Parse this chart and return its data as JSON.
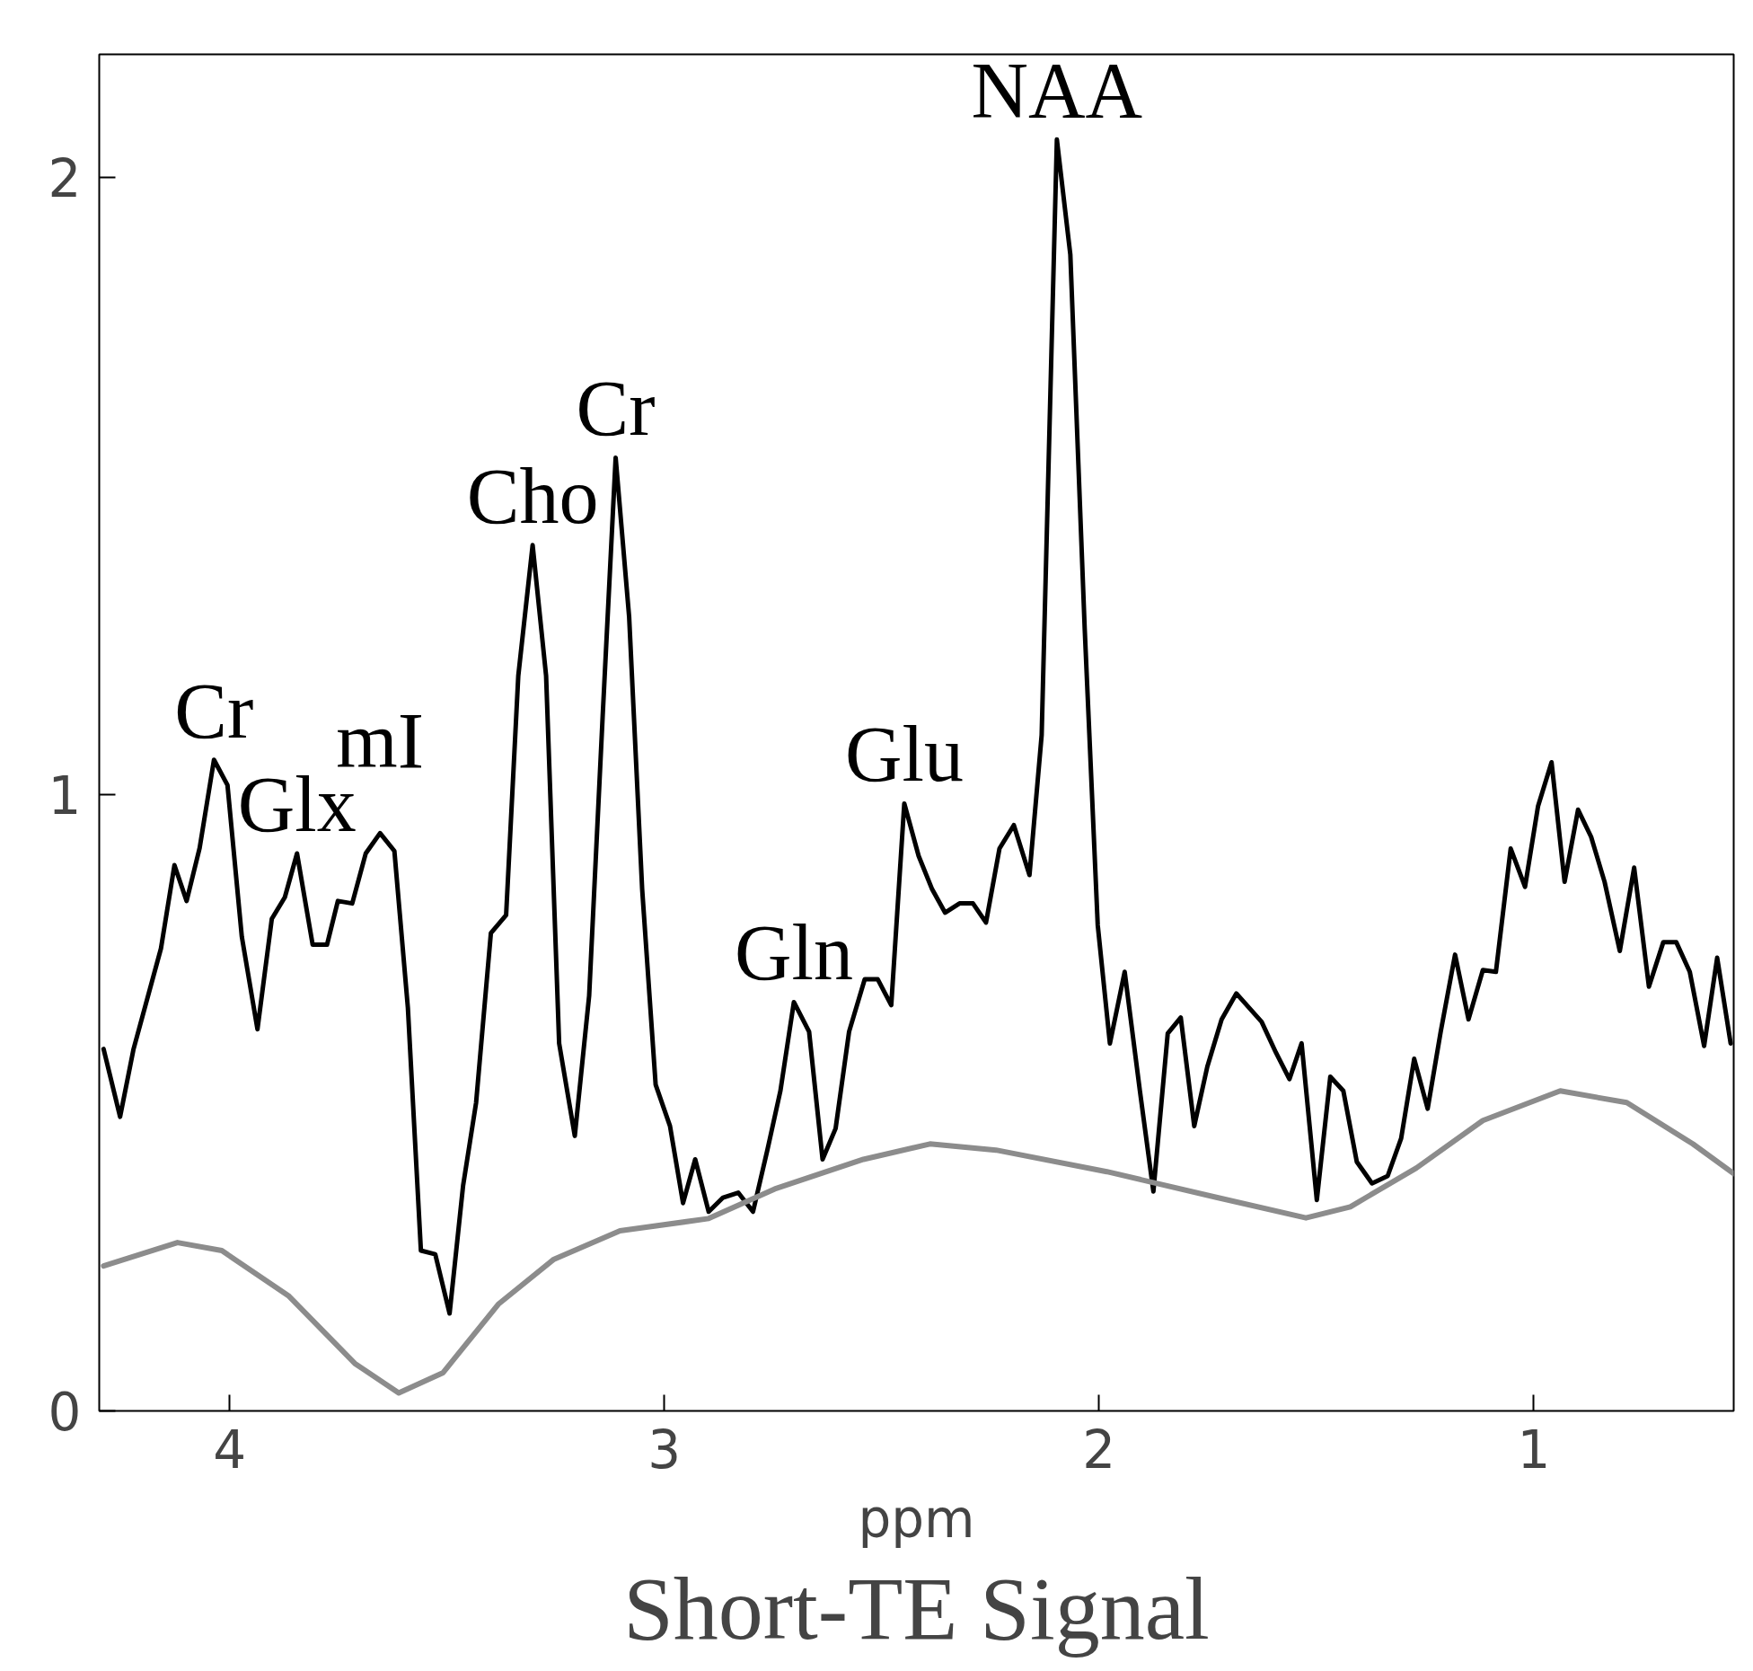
{
  "chart_data": {
    "type": "line",
    "title": "Short-TE Signal",
    "xlabel": "ppm",
    "xlim": [
      4.3,
      0.54
    ],
    "ylim": [
      0,
      2.2
    ],
    "xticks": [
      4,
      3,
      2,
      1
    ],
    "yticks": [
      0,
      1,
      2
    ],
    "grid": false,
    "marker": "none",
    "line_style": "solid",
    "series": [
      {
        "color": "#000000",
        "x": [
          4.29,
          4.252,
          4.221,
          4.158,
          4.127,
          4.099,
          4.069,
          4.036,
          4.005,
          3.972,
          3.936,
          3.903,
          3.873,
          3.845,
          3.809,
          3.776,
          3.751,
          3.718,
          3.687,
          3.654,
          3.621,
          3.59,
          3.56,
          3.527,
          3.494,
          3.463,
          3.433,
          3.399,
          3.364,
          3.336,
          3.303,
          3.272,
          3.242,
          3.206,
          3.173,
          3.142,
          3.112,
          3.081,
          3.051,
          3.02,
          2.987,
          2.957,
          2.929,
          2.898,
          2.865,
          2.83,
          2.796,
          2.763,
          2.733,
          2.702,
          2.667,
          2.636,
          2.606,
          2.575,
          2.539,
          2.509,
          2.478,
          2.448,
          2.415,
          2.384,
          2.354,
          2.321,
          2.29,
          2.26,
          2.229,
          2.196,
          2.16,
          2.132,
          2.097,
          2.066,
          2.033,
          2.003,
          1.975,
          1.941,
          1.906,
          1.875,
          1.842,
          1.812,
          1.781,
          1.751,
          1.718,
          1.684,
          1.626,
          1.593,
          1.562,
          1.534,
          1.499,
          1.468,
          1.438,
          1.407,
          1.372,
          1.336,
          1.305,
          1.275,
          1.244,
          1.214,
          1.181,
          1.15,
          1.117,
          1.087,
          1.053,
          1.02,
          0.99,
          0.959,
          0.929,
          0.898,
          0.868,
          0.837,
          0.802,
          0.769,
          0.735,
          0.702,
          0.672,
          0.641,
          0.608,
          0.578,
          0.547
        ],
        "values": [
          0.587,
          0.477,
          0.587,
          0.75,
          0.885,
          0.827,
          0.913,
          1.056,
          1.015,
          0.769,
          0.619,
          0.798,
          0.833,
          0.904,
          0.756,
          0.756,
          0.827,
          0.823,
          0.904,
          0.937,
          0.908,
          0.654,
          0.26,
          0.254,
          0.158,
          0.365,
          0.5,
          0.775,
          0.804,
          1.192,
          1.404,
          1.192,
          0.596,
          0.446,
          0.673,
          1.125,
          1.546,
          1.288,
          0.846,
          0.529,
          0.462,
          0.337,
          0.408,
          0.323,
          0.346,
          0.354,
          0.323,
          0.423,
          0.519,
          0.663,
          0.615,
          0.408,
          0.458,
          0.615,
          0.7,
          0.7,
          0.658,
          0.985,
          0.9,
          0.846,
          0.808,
          0.823,
          0.823,
          0.792,
          0.912,
          0.95,
          0.869,
          1.096,
          2.062,
          1.875,
          1.269,
          0.788,
          0.596,
          0.712,
          0.519,
          0.356,
          0.612,
          0.638,
          0.462,
          0.558,
          0.635,
          0.677,
          0.631,
          0.581,
          0.538,
          0.596,
          0.342,
          0.542,
          0.519,
          0.404,
          0.369,
          0.381,
          0.442,
          0.571,
          0.49,
          0.615,
          0.74,
          0.635,
          0.715,
          0.712,
          0.912,
          0.85,
          0.981,
          1.052,
          0.858,
          0.975,
          0.931,
          0.858,
          0.746,
          0.881,
          0.688,
          0.76,
          0.76,
          0.712,
          0.592,
          0.735,
          0.596
        ]
      },
      {
        "color": "#8c8c8c",
        "x": [
          4.29,
          4.12,
          4.018,
          3.865,
          3.712,
          3.611,
          3.509,
          3.382,
          3.254,
          3.102,
          2.898,
          2.746,
          2.542,
          2.389,
          2.237,
          1.982,
          1.728,
          1.524,
          1.422,
          1.27,
          1.117,
          0.939,
          0.786,
          0.634,
          0.54
        ],
        "values": [
          0.235,
          0.273,
          0.26,
          0.187,
          0.077,
          0.029,
          0.062,
          0.173,
          0.246,
          0.292,
          0.312,
          0.36,
          0.408,
          0.433,
          0.423,
          0.388,
          0.346,
          0.313,
          0.331,
          0.394,
          0.471,
          0.519,
          0.5,
          0.433,
          0.385
        ]
      }
    ],
    "annotations": [
      {
        "text": "Cr",
        "x": 4.036,
        "y": 1.056
      },
      {
        "text": "Glx",
        "x": 3.845,
        "y": 0.904
      },
      {
        "text": "mI",
        "x": 3.654,
        "y": 0.937
      },
      {
        "text": "Cho",
        "x": 3.303,
        "y": 1.404
      },
      {
        "text": "Cr",
        "x": 3.112,
        "y": 1.546
      },
      {
        "text": "Gln",
        "x": 2.702,
        "y": 0.663
      },
      {
        "text": "Glu",
        "x": 2.448,
        "y": 0.985
      },
      {
        "text": "NAA",
        "x": 2.097,
        "y": 2.062
      }
    ]
  }
}
